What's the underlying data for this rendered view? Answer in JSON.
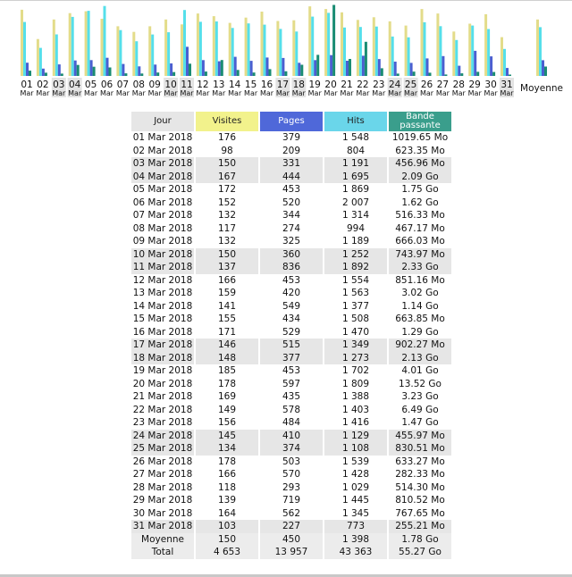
{
  "chart_data": {
    "type": "bar",
    "categories": [
      "01",
      "02",
      "03",
      "04",
      "05",
      "06",
      "07",
      "08",
      "09",
      "10",
      "11",
      "12",
      "13",
      "14",
      "15",
      "16",
      "17",
      "18",
      "19",
      "20",
      "21",
      "22",
      "23",
      "24",
      "25",
      "26",
      "27",
      "28",
      "29",
      "30",
      "31"
    ],
    "month_label": "Mar",
    "weekend_days": [
      "03",
      "04",
      "10",
      "11",
      "17",
      "18",
      "24",
      "25",
      "31"
    ],
    "series": [
      {
        "name": "Visites",
        "color": "#e3dc8a",
        "values": [
          176,
          98,
          150,
          167,
          172,
          152,
          132,
          117,
          132,
          150,
          137,
          166,
          159,
          141,
          155,
          171,
          146,
          148,
          185,
          178,
          169,
          149,
          156,
          145,
          134,
          178,
          166,
          118,
          139,
          164,
          103
        ]
      },
      {
        "name": "Hits",
        "color": "#55dfea",
        "values": [
          1548,
          804,
          1191,
          1695,
          1869,
          2007,
          1314,
          994,
          1189,
          1252,
          1892,
          1554,
          1563,
          1377,
          1508,
          1470,
          1349,
          1273,
          1702,
          1809,
          1388,
          1403,
          1416,
          1129,
          1108,
          1539,
          1428,
          1029,
          1445,
          1345,
          773
        ]
      },
      {
        "name": "Pages",
        "color": "#4a5fd0",
        "values": [
          379,
          209,
          331,
          444,
          453,
          520,
          344,
          274,
          325,
          360,
          836,
          453,
          420,
          549,
          434,
          529,
          515,
          377,
          453,
          597,
          435,
          578,
          484,
          410,
          374,
          503,
          570,
          293,
          719,
          562,
          227
        ]
      },
      {
        "name": "Bande passante",
        "color": "#1a8c73",
        "values": [
          1.0,
          0.61,
          0.45,
          2.09,
          1.75,
          1.62,
          0.5,
          0.46,
          0.65,
          0.73,
          2.33,
          0.83,
          3.02,
          1.14,
          0.65,
          1.29,
          0.88,
          2.13,
          4.01,
          13.52,
          3.23,
          6.49,
          1.47,
          0.45,
          0.81,
          0.62,
          0.28,
          0.5,
          0.79,
          0.75,
          0.25
        ]
      }
    ],
    "average": {
      "label": "Moyenne",
      "visites": 150,
      "hits": 1398,
      "pages": 450,
      "bande_passante": 1.78
    }
  },
  "table": {
    "headers": {
      "jour": "Jour",
      "visites": "Visites",
      "pages": "Pages",
      "hits": "Hits",
      "bp": "Bande passante"
    },
    "rows": [
      {
        "jour": "01 Mar 2018",
        "visites": "176",
        "pages": "379",
        "hits": "1 548",
        "bp": "1019.65 Mo",
        "we": false
      },
      {
        "jour": "02 Mar 2018",
        "visites": "98",
        "pages": "209",
        "hits": "804",
        "bp": "623.35 Mo",
        "we": false
      },
      {
        "jour": "03 Mar 2018",
        "visites": "150",
        "pages": "331",
        "hits": "1 191",
        "bp": "456.96 Mo",
        "we": true
      },
      {
        "jour": "04 Mar 2018",
        "visites": "167",
        "pages": "444",
        "hits": "1 695",
        "bp": "2.09 Go",
        "we": true
      },
      {
        "jour": "05 Mar 2018",
        "visites": "172",
        "pages": "453",
        "hits": "1 869",
        "bp": "1.75 Go",
        "we": false
      },
      {
        "jour": "06 Mar 2018",
        "visites": "152",
        "pages": "520",
        "hits": "2 007",
        "bp": "1.62 Go",
        "we": false
      },
      {
        "jour": "07 Mar 2018",
        "visites": "132",
        "pages": "344",
        "hits": "1 314",
        "bp": "516.33 Mo",
        "we": false
      },
      {
        "jour": "08 Mar 2018",
        "visites": "117",
        "pages": "274",
        "hits": "994",
        "bp": "467.17 Mo",
        "we": false
      },
      {
        "jour": "09 Mar 2018",
        "visites": "132",
        "pages": "325",
        "hits": "1 189",
        "bp": "666.03 Mo",
        "we": false
      },
      {
        "jour": "10 Mar 2018",
        "visites": "150",
        "pages": "360",
        "hits": "1 252",
        "bp": "743.97 Mo",
        "we": true
      },
      {
        "jour": "11 Mar 2018",
        "visites": "137",
        "pages": "836",
        "hits": "1 892",
        "bp": "2.33 Go",
        "we": true
      },
      {
        "jour": "12 Mar 2018",
        "visites": "166",
        "pages": "453",
        "hits": "1 554",
        "bp": "851.16 Mo",
        "we": false
      },
      {
        "jour": "13 Mar 2018",
        "visites": "159",
        "pages": "420",
        "hits": "1 563",
        "bp": "3.02 Go",
        "we": false
      },
      {
        "jour": "14 Mar 2018",
        "visites": "141",
        "pages": "549",
        "hits": "1 377",
        "bp": "1.14 Go",
        "we": false
      },
      {
        "jour": "15 Mar 2018",
        "visites": "155",
        "pages": "434",
        "hits": "1 508",
        "bp": "663.85 Mo",
        "we": false
      },
      {
        "jour": "16 Mar 2018",
        "visites": "171",
        "pages": "529",
        "hits": "1 470",
        "bp": "1.29 Go",
        "we": false
      },
      {
        "jour": "17 Mar 2018",
        "visites": "146",
        "pages": "515",
        "hits": "1 349",
        "bp": "902.27 Mo",
        "we": true
      },
      {
        "jour": "18 Mar 2018",
        "visites": "148",
        "pages": "377",
        "hits": "1 273",
        "bp": "2.13 Go",
        "we": true
      },
      {
        "jour": "19 Mar 2018",
        "visites": "185",
        "pages": "453",
        "hits": "1 702",
        "bp": "4.01 Go",
        "we": false
      },
      {
        "jour": "20 Mar 2018",
        "visites": "178",
        "pages": "597",
        "hits": "1 809",
        "bp": "13.52 Go",
        "we": false
      },
      {
        "jour": "21 Mar 2018",
        "visites": "169",
        "pages": "435",
        "hits": "1 388",
        "bp": "3.23 Go",
        "we": false
      },
      {
        "jour": "22 Mar 2018",
        "visites": "149",
        "pages": "578",
        "hits": "1 403",
        "bp": "6.49 Go",
        "we": false
      },
      {
        "jour": "23 Mar 2018",
        "visites": "156",
        "pages": "484",
        "hits": "1 416",
        "bp": "1.47 Go",
        "we": false
      },
      {
        "jour": "24 Mar 2018",
        "visites": "145",
        "pages": "410",
        "hits": "1 129",
        "bp": "455.97 Mo",
        "we": true
      },
      {
        "jour": "25 Mar 2018",
        "visites": "134",
        "pages": "374",
        "hits": "1 108",
        "bp": "830.51 Mo",
        "we": true
      },
      {
        "jour": "26 Mar 2018",
        "visites": "178",
        "pages": "503",
        "hits": "1 539",
        "bp": "633.27 Mo",
        "we": false
      },
      {
        "jour": "27 Mar 2018",
        "visites": "166",
        "pages": "570",
        "hits": "1 428",
        "bp": "282.33 Mo",
        "we": false
      },
      {
        "jour": "28 Mar 2018",
        "visites": "118",
        "pages": "293",
        "hits": "1 029",
        "bp": "514.30 Mo",
        "we": false
      },
      {
        "jour": "29 Mar 2018",
        "visites": "139",
        "pages": "719",
        "hits": "1 445",
        "bp": "810.52 Mo",
        "we": false
      },
      {
        "jour": "30 Mar 2018",
        "visites": "164",
        "pages": "562",
        "hits": "1 345",
        "bp": "767.65 Mo",
        "we": false
      },
      {
        "jour": "31 Mar 2018",
        "visites": "103",
        "pages": "227",
        "hits": "773",
        "bp": "255.21 Mo",
        "we": true
      }
    ],
    "average": {
      "jour": "Moyenne",
      "visites": "150",
      "pages": "450",
      "hits": "1 398",
      "bp": "1.78 Go"
    },
    "total": {
      "jour": "Total",
      "visites": "4 653",
      "pages": "13 957",
      "hits": "43 363",
      "bp": "55.27 Go"
    }
  }
}
